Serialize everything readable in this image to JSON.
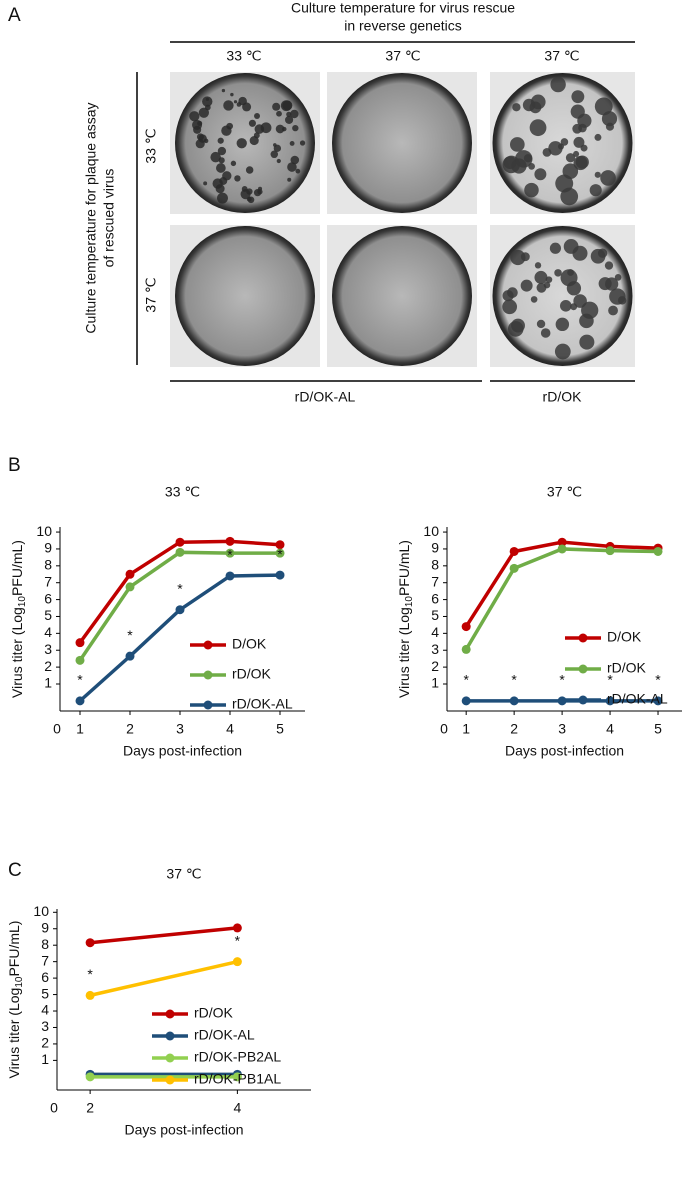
{
  "panel_labels": [
    "A",
    "B",
    "C"
  ],
  "panel_a": {
    "top_heading": [
      "Culture temperature for virus rescue",
      "in reverse genetics"
    ],
    "column_labels": [
      "33 ℃",
      "37 ℃",
      "37 ℃"
    ],
    "side_heading": [
      "Culture temperature for plaque assay",
      "of rescued virus"
    ],
    "row_labels": [
      "33 ℃",
      "37 ℃"
    ],
    "group_labels": [
      "rD/OK-AL",
      "rD/OK"
    ]
  },
  "chart_data": [
    {
      "type": "line",
      "title": "33 ℃",
      "xlabel": "Days post-infection",
      "ylabel": [
        "Virus titer (Log",
        "10",
        "PFU/mL)"
      ],
      "origin_label": "0",
      "x": [
        1,
        2,
        3,
        4,
        5
      ],
      "xlim": [
        0.6,
        5.5
      ],
      "xticks": [
        1,
        2,
        3,
        4,
        5
      ],
      "ylim": [
        -0.6,
        10.3
      ],
      "yticks": [
        1,
        2,
        3,
        4,
        5,
        6,
        7,
        8,
        9,
        10
      ],
      "series": [
        {
          "name": "D/OK",
          "color": "#c00000",
          "values": [
            3.45,
            7.5,
            9.4,
            9.45,
            9.25
          ]
        },
        {
          "name": "rD/OK",
          "color": "#70ad47",
          "values": [
            2.4,
            6.75,
            8.8,
            8.75,
            8.75
          ]
        },
        {
          "name": "rD/OK-AL",
          "color": "#1f4e79",
          "values": [
            0,
            2.65,
            5.4,
            7.4,
            7.45
          ],
          "point_labels": [
            "*",
            "*",
            "*",
            "*",
            "*"
          ]
        }
      ]
    },
    {
      "type": "line",
      "title": "37 ℃",
      "xlabel": "Days post-infection",
      "ylabel": [
        "Virus titer (Log",
        "10",
        "PFU/mL)"
      ],
      "origin_label": "0",
      "x": [
        1,
        2,
        3,
        4,
        5
      ],
      "xlim": [
        0.6,
        5.5
      ],
      "xticks": [
        1,
        2,
        3,
        4,
        5
      ],
      "ylim": [
        -0.6,
        10.3
      ],
      "yticks": [
        1,
        2,
        3,
        4,
        5,
        6,
        7,
        8,
        9,
        10
      ],
      "series": [
        {
          "name": "D/OK",
          "color": "#c00000",
          "values": [
            4.4,
            8.85,
            9.4,
            9.15,
            9.05
          ]
        },
        {
          "name": "rD/OK",
          "color": "#70ad47",
          "values": [
            3.05,
            7.85,
            9.0,
            8.9,
            8.85
          ]
        },
        {
          "name": "rD/OK-AL",
          "color": "#1f4e79",
          "values": [
            0,
            0,
            0,
            0,
            0
          ],
          "point_labels": [
            "*",
            "*",
            "*",
            "*",
            "*"
          ]
        }
      ]
    },
    {
      "type": "line",
      "title": "37 ℃",
      "xlabel": "Days post-infection",
      "ylabel": [
        "Virus titer (Log",
        "10",
        "PFU/mL)"
      ],
      "origin_label": "0",
      "x": [
        2,
        4
      ],
      "xlim": [
        1.55,
        5.0
      ],
      "xticks": [
        2,
        4
      ],
      "ylim": [
        -0.8,
        10.2
      ],
      "yticks": [
        1,
        2,
        3,
        4,
        5,
        6,
        7,
        8,
        9,
        10
      ],
      "series": [
        {
          "name": "rD/OK",
          "color": "#c00000",
          "values": [
            8.15,
            9.05
          ]
        },
        {
          "name": "rD/OK-AL",
          "color": "#1f4e79",
          "values": [
            0.15,
            0.15
          ]
        },
        {
          "name": "rD/OK-PB2AL",
          "color": "#92d050",
          "values": [
            0,
            0
          ]
        },
        {
          "name": "rD/OK-PB1AL",
          "color": "#ffc000",
          "values": [
            4.95,
            7.0
          ],
          "point_labels": [
            "*",
            "*"
          ]
        }
      ]
    }
  ]
}
